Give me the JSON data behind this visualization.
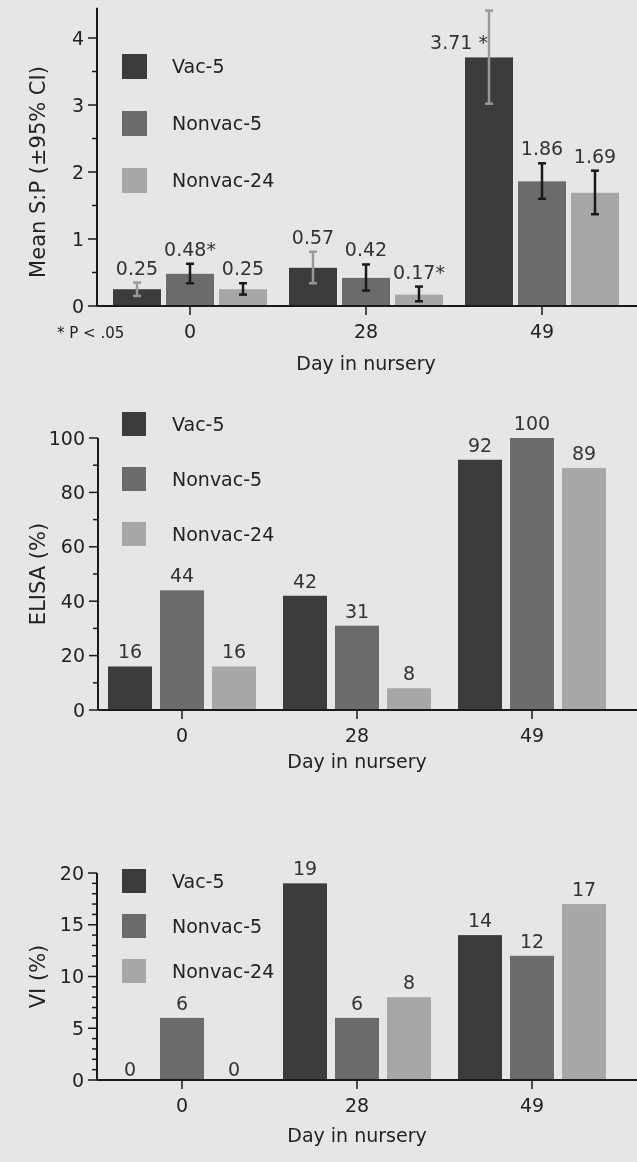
{
  "chart_data": [
    {
      "type": "bar",
      "ylabel": "Mean S:P (±95% CI)",
      "xlabel": "Day in nursery",
      "categories": [
        "0",
        "28",
        "49"
      ],
      "ylim": [
        0,
        4.45
      ],
      "yticks": [
        0,
        {
          "value": 0.5,
          "label": null
        },
        1,
        {
          "value": 1.5,
          "label": null
        },
        2,
        {
          "value": 2.5,
          "label": null
        },
        3,
        {
          "value": 3.5,
          "label": null
        },
        4
      ],
      "legend": "top left",
      "annotations": [
        "* P < .05"
      ],
      "series": [
        {
          "name": "Vac-5",
          "color": "#3c3c3c",
          "values": [
            0.25,
            0.57,
            3.71
          ],
          "errors": [
            [
              0.15,
              0.35
            ],
            [
              0.34,
              0.81
            ],
            [
              3.02,
              4.41
            ]
          ],
          "value_labels": [
            "0.25",
            "0.57",
            "3.71 *"
          ]
        },
        {
          "name": "Nonvac-5",
          "color": "#6b6b6d",
          "values": [
            0.48,
            0.42,
            1.86
          ],
          "errors": [
            [
              0.34,
              0.63
            ],
            [
              0.23,
              0.62
            ],
            [
              1.6,
              2.13
            ]
          ],
          "value_labels": [
            "0.48*",
            "0.42",
            "1.86"
          ]
        },
        {
          "name": "Nonvac-24",
          "color": "#a6a7a9",
          "values": [
            0.25,
            0.17,
            1.69
          ],
          "errors": [
            [
              0.17,
              0.34
            ],
            [
              0.07,
              0.29
            ],
            [
              1.37,
              2.02
            ]
          ],
          "value_labels": [
            "0.25",
            "0.17*",
            "1.69"
          ]
        }
      ]
    },
    {
      "type": "bar",
      "ylabel": "ELISA (%)",
      "xlabel": "Day in nursery",
      "categories": [
        "0",
        "28",
        "49"
      ],
      "ylim": [
        0,
        100
      ],
      "yticks": [
        0,
        {
          "value": 10,
          "label": null
        },
        20,
        {
          "value": 30,
          "label": null
        },
        40,
        {
          "value": 50,
          "label": null
        },
        60,
        {
          "value": 70,
          "label": null
        },
        80,
        {
          "value": 90,
          "label": null
        },
        100
      ],
      "legend": "top left",
      "data_labels": true,
      "series": [
        {
          "name": "Vac-5",
          "color": "#3c3c3c",
          "values": [
            16,
            42,
            92
          ]
        },
        {
          "name": "Nonvac-5",
          "color": "#6b6b6d",
          "values": [
            44,
            31,
            100
          ]
        },
        {
          "name": "Nonvac-24",
          "color": "#a6a7a9",
          "values": [
            16,
            8,
            89
          ]
        }
      ]
    },
    {
      "type": "bar",
      "ylabel": "VI (%)",
      "xlabel": "Day in nursery",
      "categories": [
        "0",
        "28",
        "49"
      ],
      "ylim": [
        0,
        20
      ],
      "yticks": [
        0,
        {
          "value": 1,
          "label": null
        },
        {
          "value": 2,
          "label": null
        },
        {
          "value": 3,
          "label": null
        },
        {
          "value": 4,
          "label": null
        },
        5,
        {
          "value": 6,
          "label": null
        },
        {
          "value": 7,
          "label": null
        },
        {
          "value": 8,
          "label": null
        },
        {
          "value": 9,
          "label": null
        },
        10,
        {
          "value": 11,
          "label": null
        },
        {
          "value": 12,
          "label": null
        },
        {
          "value": 13,
          "label": null
        },
        {
          "value": 14,
          "label": null
        },
        15,
        {
          "value": 16,
          "label": null
        },
        {
          "value": 17,
          "label": null
        },
        {
          "value": 18,
          "label": null
        },
        {
          "value": 19,
          "label": null
        },
        20
      ],
      "legend": "top left",
      "data_labels": true,
      "series": [
        {
          "name": "Vac-5",
          "color": "#3c3c3c",
          "values": [
            0,
            19,
            14
          ]
        },
        {
          "name": "Nonvac-5",
          "color": "#6b6b6d",
          "values": [
            6,
            6,
            12
          ]
        },
        {
          "name": "Nonvac-24",
          "color": "#a6a7a9",
          "values": [
            0,
            8,
            17
          ]
        }
      ]
    }
  ]
}
